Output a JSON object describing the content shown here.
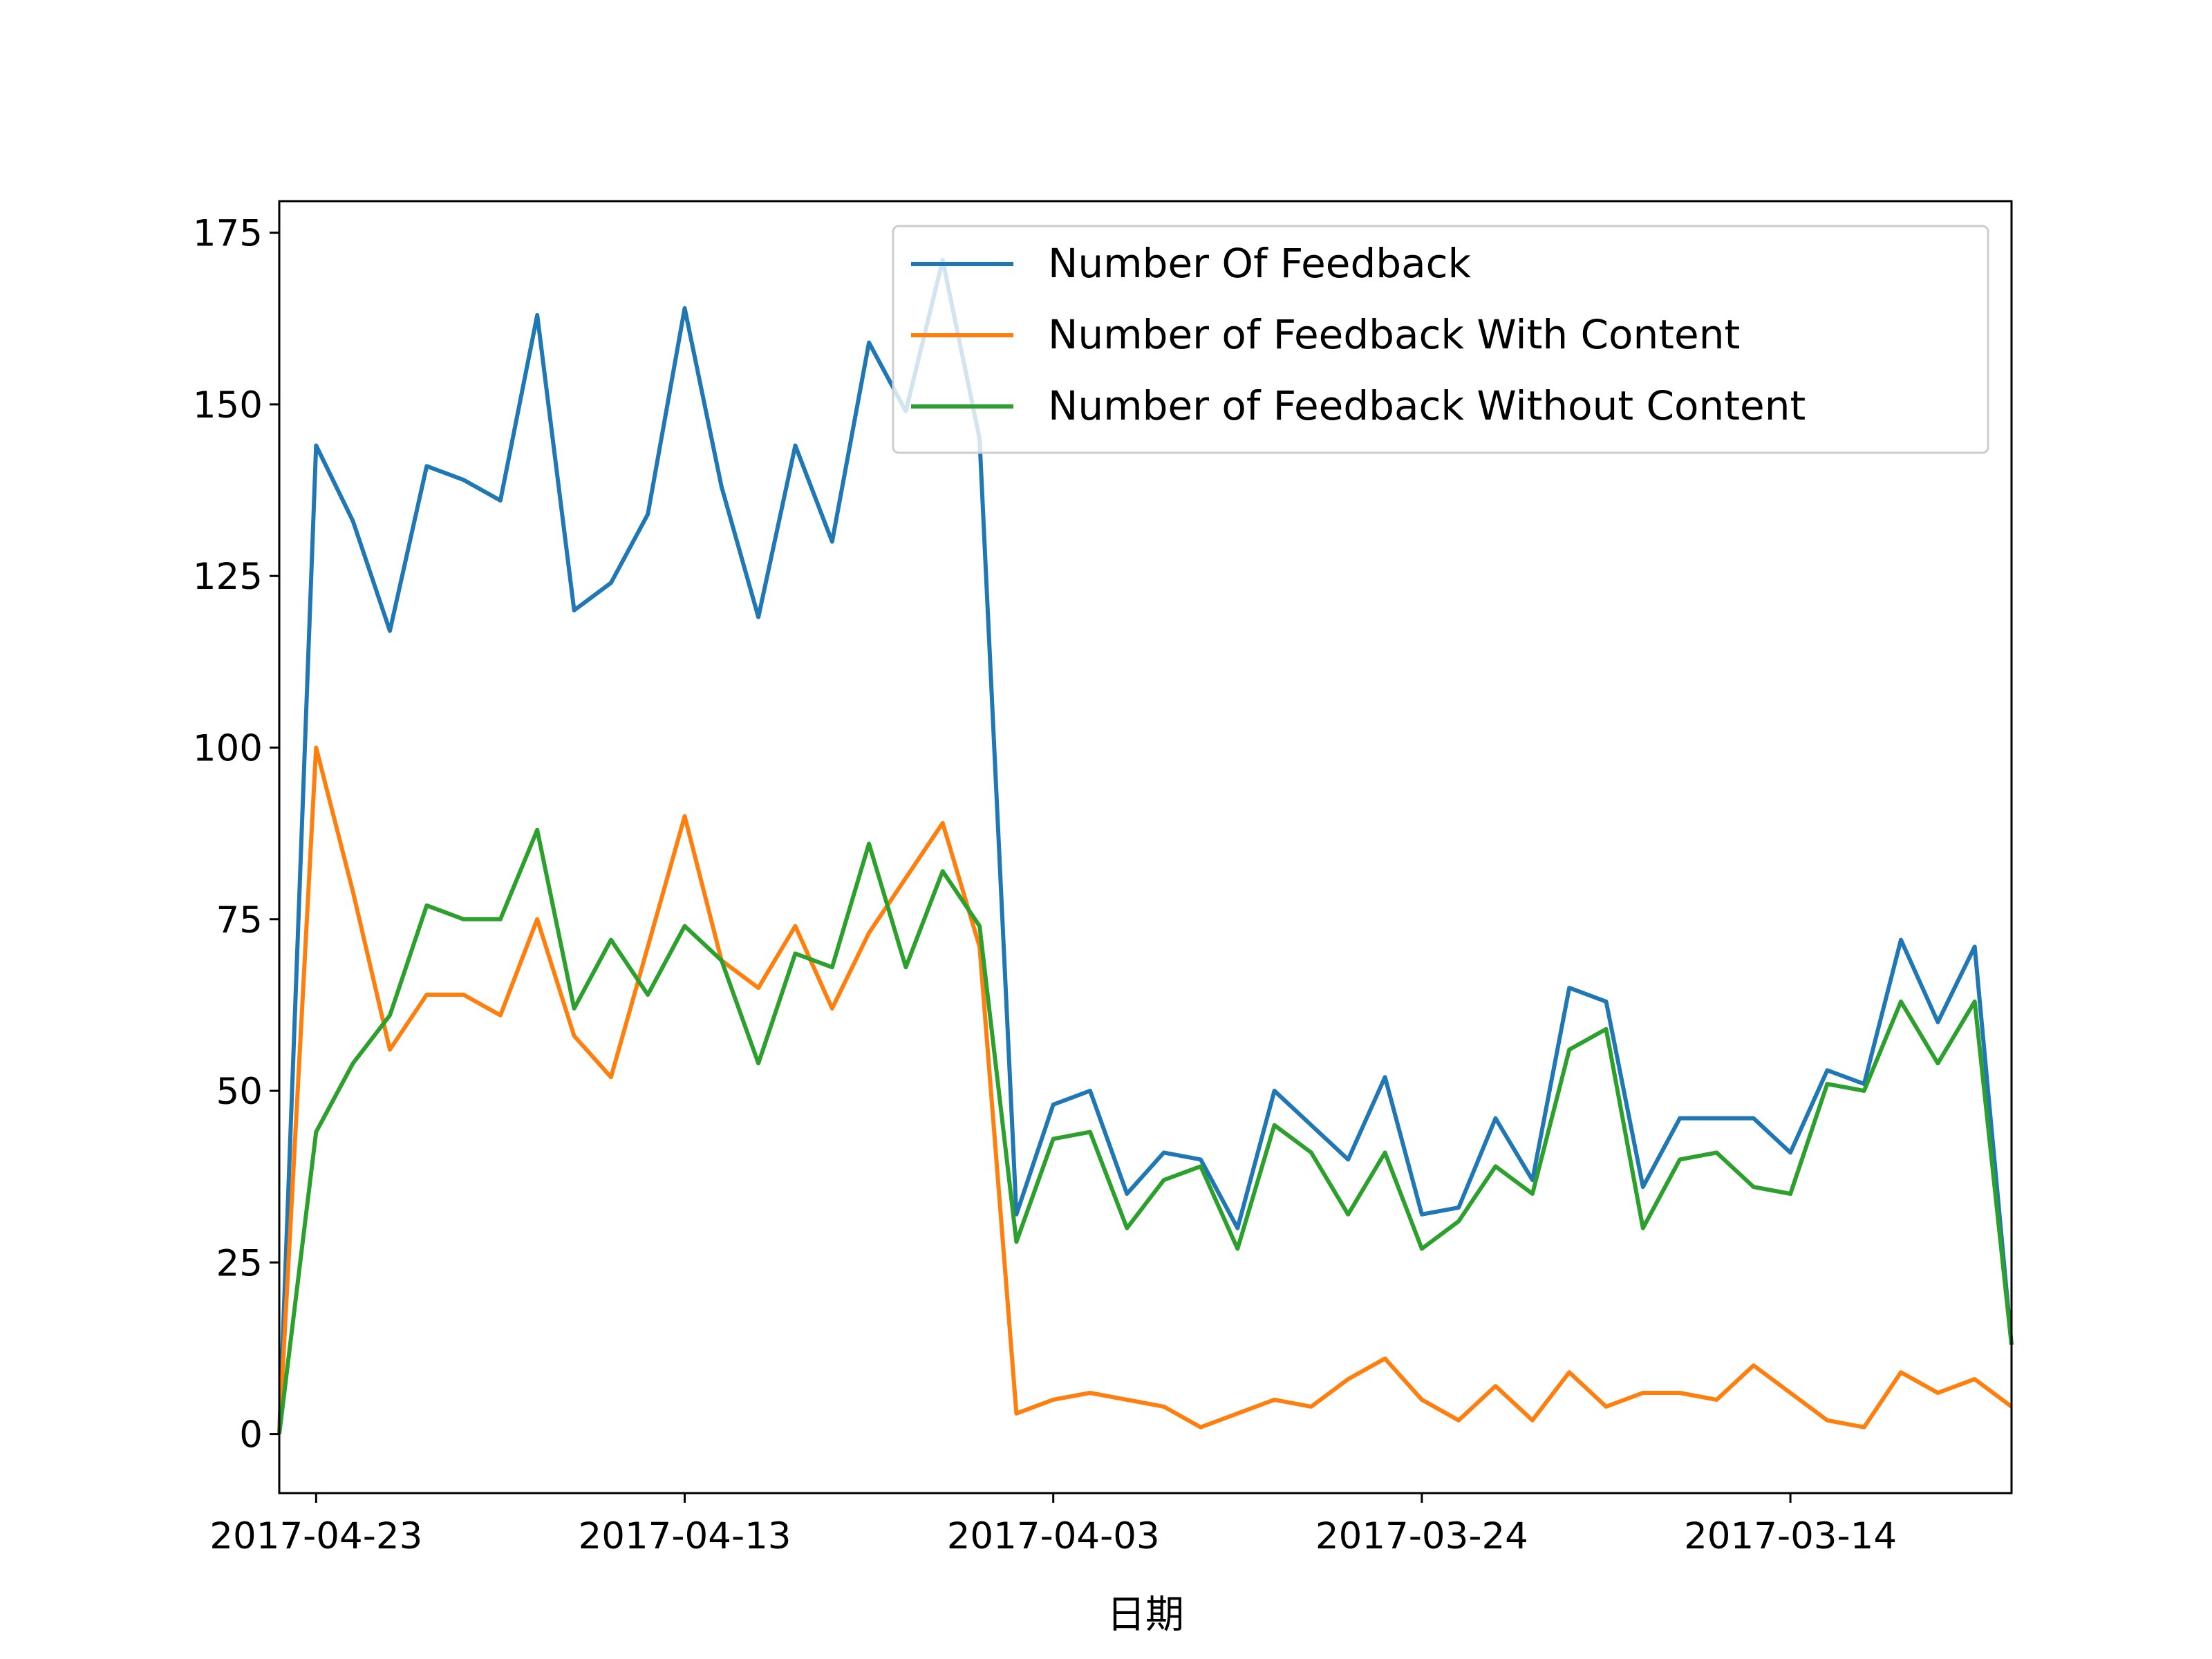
{
  "chart_data": {
    "type": "line",
    "title": "",
    "xlabel": "日期",
    "ylabel": "",
    "x": [
      "2017-04-24",
      "2017-04-23",
      "2017-04-22",
      "2017-04-21",
      "2017-04-20",
      "2017-04-19",
      "2017-04-18",
      "2017-04-17",
      "2017-04-16",
      "2017-04-15",
      "2017-04-14",
      "2017-04-13",
      "2017-04-12",
      "2017-04-11",
      "2017-04-10",
      "2017-04-09",
      "2017-04-08",
      "2017-04-07",
      "2017-04-06",
      "2017-04-05",
      "2017-04-04",
      "2017-04-03",
      "2017-04-02",
      "2017-04-01",
      "2017-03-31",
      "2017-03-30",
      "2017-03-29",
      "2017-03-28",
      "2017-03-27",
      "2017-03-26",
      "2017-03-25",
      "2017-03-24",
      "2017-03-23",
      "2017-03-22",
      "2017-03-21",
      "2017-03-20",
      "2017-03-19",
      "2017-03-18",
      "2017-03-17",
      "2017-03-16",
      "2017-03-15",
      "2017-03-14",
      "2017-03-13",
      "2017-03-12",
      "2017-03-11",
      "2017-03-10",
      "2017-03-09",
      "2017-03-08"
    ],
    "x_ticks": [
      "2017-04-23",
      "2017-04-13",
      "2017-04-03",
      "2017-03-24",
      "2017-03-14"
    ],
    "x_reversed": true,
    "ylim": [
      -8.6,
      179.6
    ],
    "y_ticks": [
      0,
      25,
      50,
      75,
      100,
      125,
      150,
      175
    ],
    "grid": false,
    "legend_position": "top-right",
    "series": [
      {
        "name": "Number Of Feedback",
        "color": "#1f77b4",
        "values": [
          0,
          144,
          133,
          117,
          141,
          139,
          136,
          163,
          120,
          124,
          134,
          164,
          138,
          119,
          144,
          130,
          159,
          149,
          171,
          145,
          32,
          48,
          50,
          35,
          41,
          40,
          30,
          50,
          45,
          40,
          52,
          32,
          33,
          46,
          37,
          65,
          63,
          36,
          46,
          46,
          46,
          41,
          53,
          51,
          72,
          60,
          71,
          13
        ]
      },
      {
        "name": "Number of Feedback With Content",
        "color": "#ff7f0e",
        "values": [
          0,
          100,
          79,
          56,
          64,
          64,
          61,
          75,
          58,
          52,
          71,
          90,
          69,
          65,
          74,
          62,
          73,
          81,
          89,
          71,
          3,
          5,
          6,
          5,
          4,
          1,
          3,
          5,
          4,
          8,
          11,
          5,
          2,
          7,
          2,
          9,
          4,
          6,
          6,
          5,
          10,
          6,
          2,
          1,
          9,
          6,
          8,
          4
        ]
      },
      {
        "name": "Number of Feedback Without Content",
        "color": "#2ca02c",
        "values": [
          0,
          44,
          54,
          61,
          77,
          75,
          75,
          88,
          62,
          72,
          64,
          74,
          69,
          54,
          70,
          68,
          86,
          68,
          82,
          74,
          28,
          43,
          44,
          30,
          37,
          39,
          27,
          45,
          41,
          32,
          41,
          27,
          31,
          39,
          35,
          56,
          59,
          30,
          40,
          41,
          36,
          35,
          51,
          50,
          63,
          54,
          63,
          13
        ]
      }
    ]
  }
}
